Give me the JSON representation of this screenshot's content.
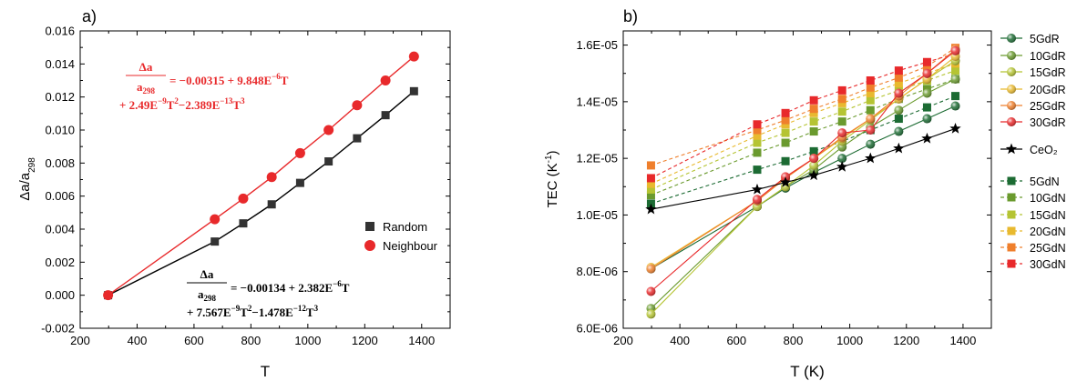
{
  "chart_data": [
    {
      "panel_label": "a)",
      "type": "line",
      "xlabel": "T",
      "ylabel_base": "Δa/a",
      "ylabel_sub": "298",
      "xlim": [
        200,
        1500
      ],
      "ylim": [
        -0.002,
        0.016
      ],
      "xticks": [
        "200",
        "400",
        "600",
        "800",
        "1000",
        "1200",
        "1400"
      ],
      "yticks": [
        "-0.002",
        "0.000",
        "0.002",
        "0.004",
        "0.006",
        "0.008",
        "0.010",
        "0.012",
        "0.014",
        "0.016"
      ],
      "legend": "right",
      "series": [
        {
          "name": "Random",
          "color": "#333333",
          "marker": "square",
          "x": [
            298,
            673,
            773,
            873,
            973,
            1073,
            1173,
            1273,
            1373
          ],
          "y": [
            0.0,
            0.00325,
            0.00435,
            0.0055,
            0.0068,
            0.0081,
            0.0095,
            0.0109,
            0.01235
          ]
        },
        {
          "name": "Neighbour",
          "color": "#e8292b",
          "marker": "circle",
          "x": [
            298,
            673,
            773,
            873,
            973,
            1073,
            1173,
            1273,
            1373
          ],
          "y": [
            0.0,
            0.0046,
            0.00585,
            0.00715,
            0.0086,
            0.01,
            0.0115,
            0.013,
            0.01445
          ]
        }
      ],
      "equations": {
        "neighbour": {
          "numer": "Δa",
          "denom_base": "a",
          "denom_sub": "298",
          "line1": "= −0.00315 + 9.848E",
          "line1_sup": "−6",
          "line1_end": "T",
          "line2_a": "+ 2.49E",
          "line2_a_sup": "−9",
          "line2_b": "T",
          "line2_b_sup": "2",
          "line2_c": "−2.389E",
          "line2_c_sup": "−13",
          "line2_d": "T",
          "line2_d_sup": "3"
        },
        "random": {
          "numer": "Δa",
          "denom_base": "a",
          "denom_sub": "298",
          "line1": "= −0.00134 + 2.382E",
          "line1_sup": "−6",
          "line1_end": "T",
          "line2_a": "+ 7.567E",
          "line2_a_sup": "−9",
          "line2_b": "T",
          "line2_b_sup": "2",
          "line2_c": "−1.478E",
          "line2_c_sup": "−12",
          "line2_d": "T",
          "line2_d_sup": "3"
        }
      }
    },
    {
      "panel_label": "b)",
      "type": "line",
      "xlabel": "T (K)",
      "ylabel": "TEC (K",
      "ylabel_sup": "-1",
      "ylabel_end": ")",
      "xlim": [
        200,
        1500
      ],
      "ylim": [
        6e-06,
        1.65e-05
      ],
      "xticks": [
        "200",
        "400",
        "600",
        "800",
        "1000",
        "1200",
        "1400"
      ],
      "yticks": [
        "6.0E-06",
        "8.0E-06",
        "1.0E-05",
        "1.2E-05",
        "1.4E-05",
        "1.6E-05"
      ],
      "ytick_values": [
        6e-06,
        8e-06,
        1e-05,
        1.2e-05,
        1.4e-05,
        1.6e-05
      ],
      "legend": "right",
      "x": [
        298,
        673,
        773,
        873,
        973,
        1073,
        1173,
        1273,
        1373
      ],
      "series": [
        {
          "name": "5GdR",
          "color": "#1c6b33",
          "marker": "sphere",
          "dashed": false,
          "y": [
            8.1e-06,
            1.03e-05,
            1.095e-05,
            1.15e-05,
            1.2e-05,
            1.25e-05,
            1.295e-05,
            1.34e-05,
            1.385e-05
          ]
        },
        {
          "name": "10GdR",
          "color": "#6a9a2e",
          "marker": "sphere",
          "dashed": false,
          "y": [
            6.7e-06,
            1.03e-05,
            1.1e-05,
            1.16e-05,
            1.24e-05,
            1.31e-05,
            1.37e-05,
            1.43e-05,
            1.48e-05
          ]
        },
        {
          "name": "15GdR",
          "color": "#b5c433",
          "marker": "sphere",
          "dashed": false,
          "y": [
            6.5e-06,
            1.03e-05,
            1.1e-05,
            1.175e-05,
            1.26e-05,
            1.335e-05,
            1.41e-05,
            1.48e-05,
            1.545e-05
          ]
        },
        {
          "name": "20GdR",
          "color": "#e8b92f",
          "marker": "sphere",
          "dashed": false,
          "y": [
            8.15e-06,
            1.05e-05,
            1.13e-05,
            1.2e-05,
            1.27e-05,
            1.34e-05,
            1.41e-05,
            1.48e-05,
            1.56e-05
          ]
        },
        {
          "name": "25GdR",
          "color": "#ef7f2c",
          "marker": "sphere",
          "dashed": false,
          "y": [
            8.1e-06,
            1.05e-05,
            1.13e-05,
            1.2e-05,
            1.275e-05,
            1.34e-05,
            1.42e-05,
            1.5e-05,
            1.585e-05
          ]
        },
        {
          "name": "30GdR",
          "color": "#e8292b",
          "marker": "sphere",
          "dashed": false,
          "y": [
            7.3e-06,
            1.055e-05,
            1.135e-05,
            1.2e-05,
            1.29e-05,
            1.3e-05,
            1.43e-05,
            1.5e-05,
            1.58e-05
          ]
        },
        {
          "name": "CeO₂",
          "color": "#000000",
          "marker": "star",
          "dashed": false,
          "y": [
            1.02e-05,
            1.09e-05,
            1.115e-05,
            1.14e-05,
            1.17e-05,
            1.2e-05,
            1.235e-05,
            1.27e-05,
            1.305e-05
          ]
        },
        {
          "name": "5GdN",
          "color": "#1c6b33",
          "marker": "square",
          "dashed": true,
          "y": [
            1.04e-05,
            1.16e-05,
            1.19e-05,
            1.225e-05,
            1.26e-05,
            1.3e-05,
            1.34e-05,
            1.38e-05,
            1.42e-05
          ]
        },
        {
          "name": "10GdN",
          "color": "#6a9a2e",
          "marker": "square",
          "dashed": true,
          "y": [
            1.07e-05,
            1.22e-05,
            1.255e-05,
            1.295e-05,
            1.33e-05,
            1.37e-05,
            1.41e-05,
            1.445e-05,
            1.48e-05
          ]
        },
        {
          "name": "15GdN",
          "color": "#b5c433",
          "marker": "square",
          "dashed": true,
          "y": [
            1.09e-05,
            1.255e-05,
            1.29e-05,
            1.33e-05,
            1.365e-05,
            1.405e-05,
            1.44e-05,
            1.475e-05,
            1.51e-05
          ]
        },
        {
          "name": "20GdN",
          "color": "#e8b92f",
          "marker": "square",
          "dashed": true,
          "y": [
            1.11e-05,
            1.28e-05,
            1.32e-05,
            1.36e-05,
            1.395e-05,
            1.43e-05,
            1.465e-05,
            1.5e-05,
            1.535e-05
          ]
        },
        {
          "name": "25GdN",
          "color": "#ef7f2c",
          "marker": "square",
          "dashed": true,
          "y": [
            1.175e-05,
            1.3e-05,
            1.335e-05,
            1.375e-05,
            1.41e-05,
            1.45e-05,
            1.485e-05,
            1.525e-05,
            1.59e-05
          ]
        },
        {
          "name": "30GdN",
          "color": "#e8292b",
          "marker": "square",
          "dashed": true,
          "y": [
            1.13e-05,
            1.32e-05,
            1.36e-05,
            1.405e-05,
            1.44e-05,
            1.475e-05,
            1.51e-05,
            1.54e-05,
            1.57e-05
          ]
        }
      ]
    }
  ]
}
